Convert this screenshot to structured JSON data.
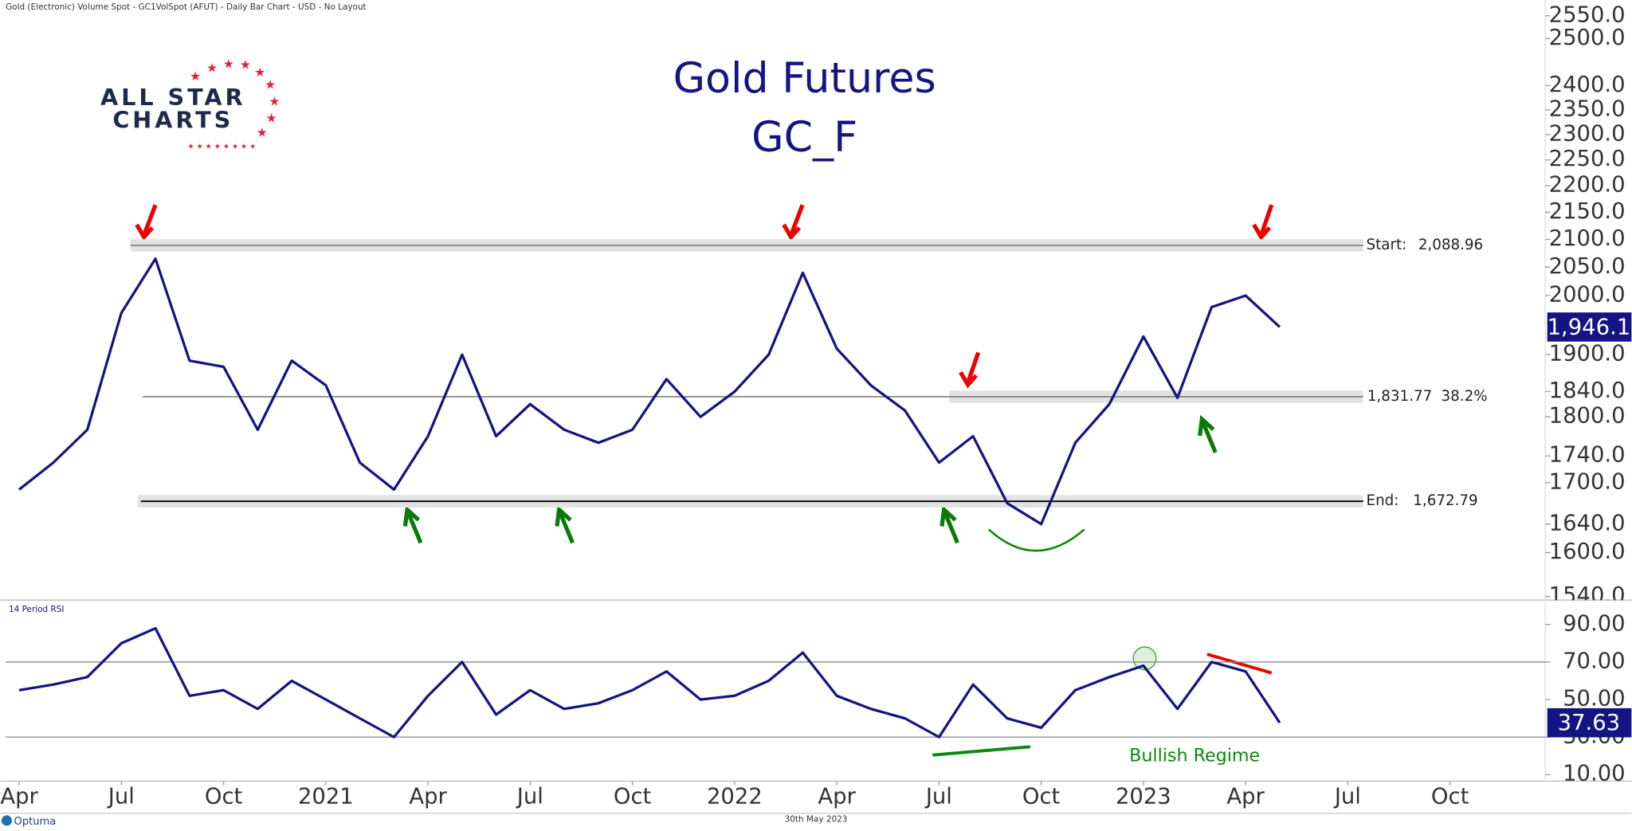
{
  "header": "Gold (Electronic) Volume Spot - GC1VolSpot (AFUT) - Daily Bar Chart - USD - No Layout",
  "logo": {
    "line1": "ALL STAR",
    "line2": "CHARTS"
  },
  "footer": {
    "date": "30th May 2023",
    "brand": "Optuma"
  },
  "chart_data": [
    {
      "type": "line",
      "title": "Gold Futures",
      "subtitle": "GC_F",
      "log_scale": true,
      "x": [
        "2020-04",
        "2020-05",
        "2020-06",
        "2020-07",
        "2020-08",
        "2020-09",
        "2020-10",
        "2020-11",
        "2020-12",
        "2021-01",
        "2021-02",
        "2021-03",
        "2021-04",
        "2021-05",
        "2021-06",
        "2021-07",
        "2021-08",
        "2021-09",
        "2021-10",
        "2021-11",
        "2021-12",
        "2022-01",
        "2022-02",
        "2022-03",
        "2022-04",
        "2022-05",
        "2022-06",
        "2022-07",
        "2022-08",
        "2022-09",
        "2022-10",
        "2022-11",
        "2022-12",
        "2023-01",
        "2023-02",
        "2023-03",
        "2023-04",
        "2023-05"
      ],
      "series": [
        {
          "name": "GC_F",
          "color": "#141482",
          "values": [
            1690,
            1730,
            1780,
            1970,
            2065,
            1890,
            1880,
            1780,
            1890,
            1850,
            1730,
            1690,
            1770,
            1900,
            1770,
            1820,
            1780,
            1760,
            1780,
            1860,
            1800,
            1840,
            1900,
            2040,
            1910,
            1850,
            1810,
            1730,
            1770,
            1670,
            1640,
            1760,
            1820,
            1930,
            1830,
            1980,
            2000,
            1946.1
          ],
          "last_label": "1,946.1"
        }
      ],
      "xlim": [
        "2020-04",
        "2023-12"
      ],
      "ylim": [
        1538,
        2562
      ],
      "yticks": [
        {
          "value": 1540,
          "label": "1540.0"
        },
        {
          "value": 1600,
          "label": "1600.0"
        },
        {
          "value": 1640,
          "label": "1640.0"
        },
        {
          "value": 1700,
          "label": "1700.0"
        },
        {
          "value": 1740,
          "label": "1740.0"
        },
        {
          "value": 1800,
          "label": "1800.0"
        },
        {
          "value": 1840,
          "label": "1840.0"
        },
        {
          "value": 1900,
          "label": "1900.0"
        },
        {
          "value": 2000,
          "label": "2000.0"
        },
        {
          "value": 2050,
          "label": "2050.0"
        },
        {
          "value": 2100,
          "label": "2100.0"
        },
        {
          "value": 2150,
          "label": "2150.0"
        },
        {
          "value": 2200,
          "label": "2200.0"
        },
        {
          "value": 2250,
          "label": "2250.0"
        },
        {
          "value": 2300,
          "label": "2300.0"
        },
        {
          "value": 2350,
          "label": "2350.0"
        },
        {
          "value": 2400,
          "label": "2400.0"
        },
        {
          "value": 2500,
          "label": "2500.0"
        },
        {
          "value": 2550,
          "label": "2550.0"
        }
      ],
      "levels": [
        {
          "text": "Start:",
          "value": 2088.96,
          "value_label": "2,088.96"
        },
        {
          "text": "38.2%",
          "value": 1831.77,
          "value_label": "1,831.77"
        },
        {
          "text": "End:",
          "value": 1672.79,
          "value_label": "1,672.79"
        }
      ]
    },
    {
      "type": "line",
      "title": "14 Period RSI",
      "x": [
        "2020-04",
        "2020-05",
        "2020-06",
        "2020-07",
        "2020-08",
        "2020-09",
        "2020-10",
        "2020-11",
        "2020-12",
        "2021-01",
        "2021-02",
        "2021-03",
        "2021-04",
        "2021-05",
        "2021-06",
        "2021-07",
        "2021-08",
        "2021-09",
        "2021-10",
        "2021-11",
        "2021-12",
        "2022-01",
        "2022-02",
        "2022-03",
        "2022-04",
        "2022-05",
        "2022-06",
        "2022-07",
        "2022-08",
        "2022-09",
        "2022-10",
        "2022-11",
        "2022-12",
        "2023-01",
        "2023-02",
        "2023-03",
        "2023-04",
        "2023-05"
      ],
      "series": [
        {
          "name": "RSI",
          "color": "#141482",
          "values": [
            55,
            58,
            62,
            80,
            88,
            52,
            55,
            45,
            60,
            50,
            40,
            30,
            52,
            70,
            42,
            55,
            45,
            48,
            55,
            65,
            50,
            52,
            60,
            75,
            52,
            45,
            40,
            30,
            58,
            40,
            35,
            55,
            62,
            68,
            45,
            70,
            65,
            37.63
          ],
          "last_label": "37.63"
        }
      ],
      "xlim": [
        "2020-04",
        "2023-12"
      ],
      "ylim": [
        6,
        103
      ],
      "yticks": [
        {
          "value": 10,
          "label": "10.00"
        },
        {
          "value": 30,
          "label": "30.00"
        },
        {
          "value": 50,
          "label": "50.00"
        },
        {
          "value": 70,
          "label": "70.00"
        },
        {
          "value": 90,
          "label": "90.00"
        }
      ],
      "ref_lines": [
        30,
        70
      ],
      "annotation": "Bullish Regime",
      "xticks": [
        {
          "value": "2020-04",
          "label": "Apr"
        },
        {
          "value": "2020-07",
          "label": "Jul"
        },
        {
          "value": "2020-10",
          "label": "Oct"
        },
        {
          "value": "2021-01",
          "label": "2021"
        },
        {
          "value": "2021-04",
          "label": "Apr"
        },
        {
          "value": "2021-07",
          "label": "Jul"
        },
        {
          "value": "2021-10",
          "label": "Oct"
        },
        {
          "value": "2022-01",
          "label": "2022"
        },
        {
          "value": "2022-04",
          "label": "Apr"
        },
        {
          "value": "2022-07",
          "label": "Jul"
        },
        {
          "value": "2022-10",
          "label": "Oct"
        },
        {
          "value": "2023-01",
          "label": "2023"
        },
        {
          "value": "2023-04",
          "label": "Apr"
        },
        {
          "value": "2023-07",
          "label": "Jul"
        },
        {
          "value": "2023-10",
          "label": "Oct"
        }
      ]
    }
  ]
}
